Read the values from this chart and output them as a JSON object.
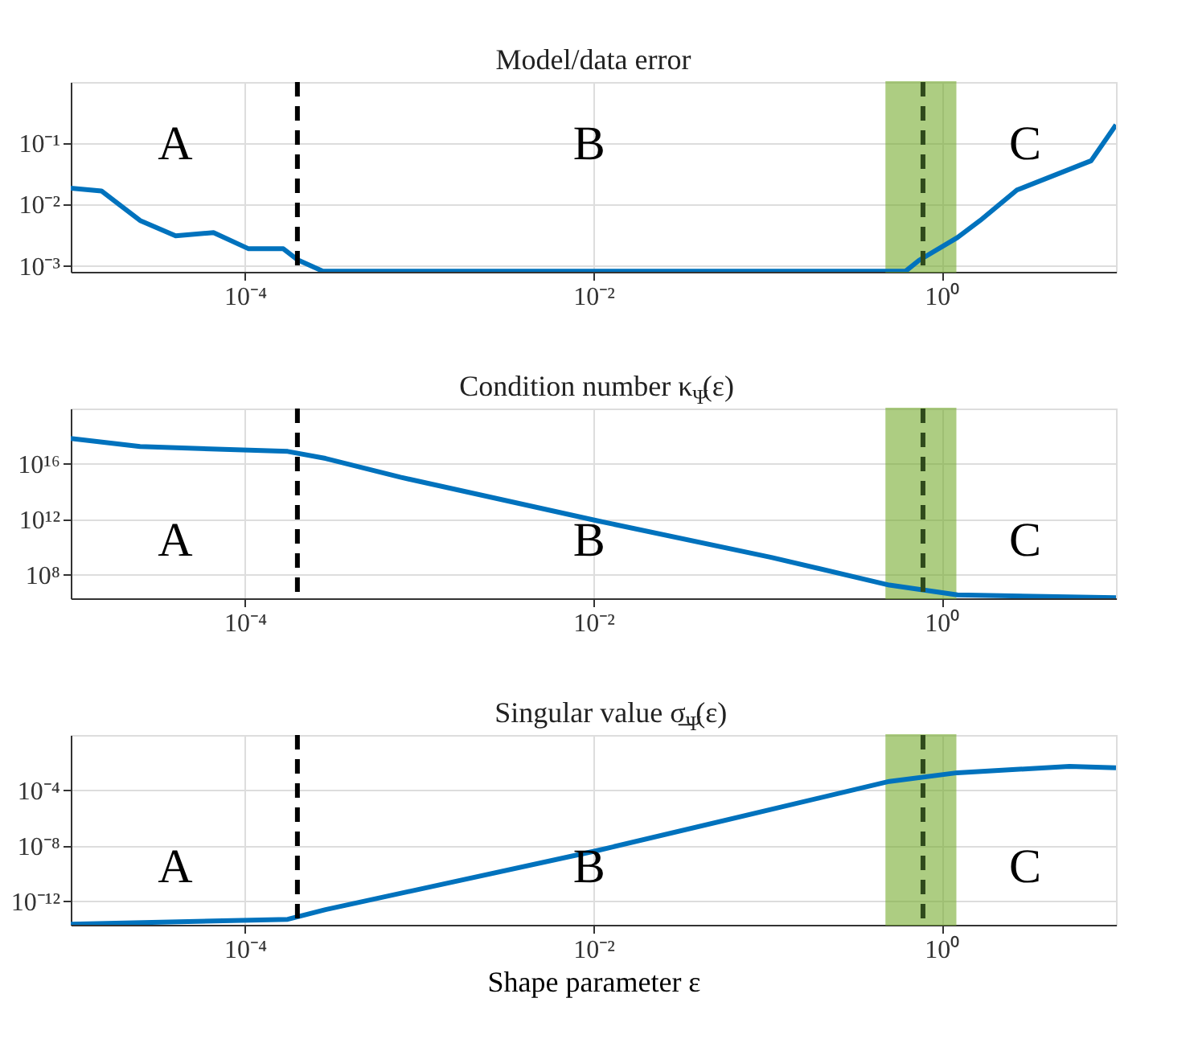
{
  "chart_data": [
    {
      "type": "line",
      "title": "Model/data error",
      "log": "xy",
      "grid": true,
      "line_style": "solid",
      "marker": "none",
      "xlim": [
        1e-05,
        10
      ],
      "xticks": [
        {
          "value": 0.0001,
          "label": "10⁻⁴"
        },
        {
          "value": 0.01,
          "label": "10⁻²"
        },
        {
          "value": 1,
          "label": "10⁰"
        }
      ],
      "ylim": [
        0.0008,
        1
      ],
      "yticks": [
        {
          "value": 0.001,
          "label": "10⁻³"
        },
        {
          "value": 0.01,
          "label": "10⁻²"
        },
        {
          "value": 0.1,
          "label": "10⁻¹"
        }
      ],
      "x": [
        1e-05,
        1.5e-05,
        2.5e-05,
        4e-05,
        6.6e-05,
        0.000105,
        0.000166,
        0.0002,
        0.00028,
        0.62,
        0.74,
        1.23,
        1.66,
        2.7,
        7.2,
        10
      ],
      "series": [
        {
          "color": "#0072bd",
          "values": [
            0.0186,
            0.0167,
            0.0055,
            0.0031,
            0.0035,
            0.0019,
            0.0019,
            0.00126,
            0.00082,
            0.00082,
            0.00123,
            0.0029,
            0.0055,
            0.0173,
            0.052,
            0.2
          ]
        }
      ],
      "ref_lines": [
        {
          "axis": "x",
          "value": 0.0002,
          "color": "#000000",
          "line_style": "dashed"
        },
        {
          "axis": "x",
          "value": 0.78,
          "color": "#2f4a1c",
          "line_style": "dashed"
        }
      ],
      "bands": [
        {
          "axis": "x",
          "from": 0.48,
          "to": 1.2,
          "color": "#77ac30"
        }
      ],
      "annotations": [
        "A",
        "B",
        "C"
      ]
    },
    {
      "type": "line",
      "title": "Condition number κ$_{Ψ}$(ε)",
      "log": "xy",
      "grid": true,
      "line_style": "solid",
      "marker": "none",
      "xlim": [
        1e-05,
        10
      ],
      "xticks": [
        {
          "value": 0.0001,
          "label": "10⁻⁴"
        },
        {
          "value": 0.01,
          "label": "10⁻²"
        },
        {
          "value": 1,
          "label": "10⁰"
        }
      ],
      "ylim": [
        2000000.0,
        1e+20
      ],
      "yticks": [
        {
          "value": 100000000.0,
          "label": "10⁸"
        },
        {
          "value": 1000000000000.0,
          "label": "10¹²"
        },
        {
          "value": 1e+16,
          "label": "10¹⁶"
        }
      ],
      "x": [
        1e-05,
        2.5e-05,
        0.000176,
        0.00029,
        0.00078,
        0.0105,
        0.105,
        0.5,
        1.23,
        10
      ],
      "series": [
        {
          "color": "#0072bd",
          "values": [
            7e+17,
            1.8e+17,
            8e+16,
            2.5e+16,
            1100000000000000.0,
            800000000000.0,
            1800000000.0,
            18000000.0,
            3500000.0,
            2200000.0
          ]
        }
      ],
      "ref_lines": [
        {
          "axis": "x",
          "value": 0.0002,
          "color": "#000000",
          "line_style": "dashed"
        },
        {
          "axis": "x",
          "value": 0.78,
          "color": "#2f4a1c",
          "line_style": "dashed"
        }
      ],
      "bands": [
        {
          "axis": "x",
          "from": 0.48,
          "to": 1.2,
          "color": "#77ac30"
        }
      ],
      "annotations": [
        "A",
        "B",
        "C"
      ]
    },
    {
      "type": "line",
      "title": "Singular value σ̲$_{Ψ}$(ε)",
      "xlabel": "Shape parameter ε",
      "log": "xy",
      "grid": true,
      "line_style": "solid",
      "marker": "none",
      "xlim": [
        1e-05,
        10
      ],
      "xticks": [
        {
          "value": 0.0001,
          "label": "10⁻⁴"
        },
        {
          "value": 0.01,
          "label": "10⁻²"
        },
        {
          "value": 1,
          "label": "10⁰"
        }
      ],
      "ylim": [
        2e-14,
        1
      ],
      "yticks": [
        {
          "value": 1e-12,
          "label": "10⁻¹²"
        },
        {
          "value": 1e-08,
          "label": "10⁻⁸"
        },
        {
          "value": 0.0001,
          "label": "10⁻⁴"
        }
      ],
      "x": [
        1e-05,
        0.000176,
        0.00029,
        0.0105,
        0.5,
        1.23,
        5.4,
        10
      ],
      "series": [
        {
          "color": "#0072bd",
          "values": [
            2.2e-14,
            5e-14,
            2.5e-13,
            4.5e-09,
            0.00045,
            0.0019,
            0.0054,
            0.0043
          ]
        }
      ],
      "ref_lines": [
        {
          "axis": "x",
          "value": 0.0002,
          "color": "#000000",
          "line_style": "dashed"
        },
        {
          "axis": "x",
          "value": 0.78,
          "color": "#2f4a1c",
          "line_style": "dashed"
        }
      ],
      "bands": [
        {
          "axis": "x",
          "from": 0.48,
          "to": 1.2,
          "color": "#77ac30"
        }
      ],
      "annotations": [
        "A",
        "B",
        "C"
      ]
    }
  ]
}
